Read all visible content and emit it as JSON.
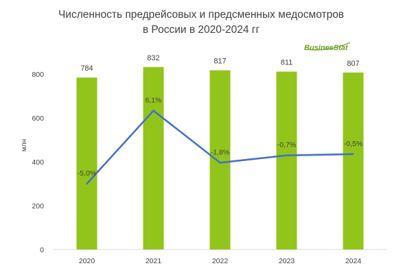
{
  "chart_data": {
    "type": "bar",
    "title_lines": [
      "Численность предрейсовых и предсменных медосмотров",
      "в России в 2020-2024 гг"
    ],
    "ylabel": "млн",
    "ylim": [
      0,
      900
    ],
    "yticks": [
      0,
      200,
      400,
      600,
      800
    ],
    "categories": [
      "2020",
      "2021",
      "2022",
      "2023",
      "2024"
    ],
    "series": [
      {
        "type": "bar",
        "values": [
          784,
          832,
          817,
          811,
          807
        ],
        "value_labels": [
          "784",
          "832",
          "817",
          "811",
          "807"
        ],
        "color": "#92c51b"
      },
      {
        "type": "line",
        "values": [
          -5.0,
          6.1,
          -1.8,
          -0.7,
          -0.5
        ],
        "value_labels": [
          "-5,0%",
          "6,1%",
          "-1,8%",
          "-0,7%",
          "-0,5%"
        ],
        "color": "#4472c4"
      }
    ],
    "grid": false,
    "legend": "none"
  },
  "branding": {
    "logo_text": "BusinesStat"
  }
}
